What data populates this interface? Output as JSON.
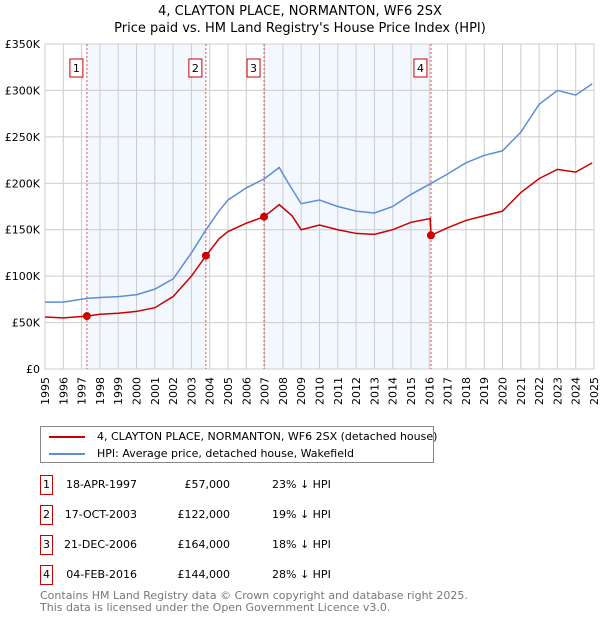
{
  "chart_data": {
    "type": "line",
    "title": "4, CLAYTON PLACE, NORMANTON, WF6 2SX",
    "subtitle": "Price paid vs. HM Land Registry's House Price Index (HPI)",
    "xlim": [
      1995,
      2025
    ],
    "ylim": [
      0,
      350000
    ],
    "x_ticks": [
      "1995",
      "1996",
      "1997",
      "1998",
      "1999",
      "2000",
      "2001",
      "2002",
      "2003",
      "2004",
      "2005",
      "2006",
      "2007",
      "2008",
      "2009",
      "2010",
      "2011",
      "2012",
      "2013",
      "2014",
      "2015",
      "2016",
      "2017",
      "2018",
      "2019",
      "2020",
      "2021",
      "2022",
      "2023",
      "2024",
      "2025"
    ],
    "y_ticks": [
      {
        "v": 0,
        "label": "£0"
      },
      {
        "v": 50000,
        "label": "£50K"
      },
      {
        "v": 100000,
        "label": "£100K"
      },
      {
        "v": 150000,
        "label": "£150K"
      },
      {
        "v": 200000,
        "label": "£200K"
      },
      {
        "v": 250000,
        "label": "£250K"
      },
      {
        "v": 300000,
        "label": "£300K"
      },
      {
        "v": 350000,
        "label": "£350K"
      }
    ],
    "grid": true,
    "series": [
      {
        "name": "4, CLAYTON PLACE, NORMANTON, WF6 2SX (detached house)",
        "color": "#cc0000",
        "x": [
          1995,
          1996,
          1997.3,
          1998,
          1999,
          2000,
          2001,
          2002,
          2003,
          2003.8,
          2004.5,
          2005,
          2006,
          2006.97,
          2007.8,
          2008.5,
          2009,
          2010,
          2011,
          2012,
          2013,
          2014,
          2015,
          2016.05,
          2016.1,
          2017,
          2018,
          2019,
          2020,
          2021,
          2022,
          2023,
          2024,
          2024.9
        ],
        "y": [
          56000,
          55000,
          57000,
          59000,
          60000,
          62000,
          66000,
          78000,
          100000,
          122000,
          140000,
          148000,
          157000,
          164000,
          177000,
          165000,
          150000,
          155000,
          150000,
          146000,
          145000,
          150000,
          158000,
          162000,
          144000,
          152000,
          160000,
          165000,
          170000,
          190000,
          205000,
          215000,
          212000,
          222000
        ]
      },
      {
        "name": "HPI: Average price, detached house, Wakefield",
        "color": "#5b8fd4",
        "x": [
          1995,
          1996,
          1997.3,
          1998,
          1999,
          2000,
          2001,
          2002,
          2003,
          2003.8,
          2004.5,
          2005,
          2006,
          2007,
          2007.8,
          2008.3,
          2009,
          2010,
          2011,
          2012,
          2013,
          2014,
          2015,
          2016.1,
          2017,
          2018,
          2019,
          2020,
          2021,
          2022,
          2023,
          2024,
          2024.9
        ],
        "y": [
          72000,
          72000,
          76000,
          77000,
          78000,
          80000,
          86000,
          97000,
          125000,
          150000,
          170000,
          182000,
          195000,
          205000,
          217000,
          200000,
          178000,
          182000,
          175000,
          170000,
          168000,
          175000,
          188000,
          200000,
          210000,
          222000,
          230000,
          235000,
          255000,
          285000,
          300000,
          295000,
          307000
        ]
      }
    ],
    "sales": [
      {
        "n": "1",
        "x": 1997.29,
        "date": "18-APR-1997",
        "price": 57000,
        "price_label": "£57,000",
        "hpi": "23% ↓ HPI"
      },
      {
        "n": "2",
        "x": 2003.79,
        "date": "17-OCT-2003",
        "price": 122000,
        "price_label": "£122,000",
        "hpi": "19% ↓ HPI"
      },
      {
        "n": "3",
        "x": 2006.97,
        "date": "21-DEC-2006",
        "price": 164000,
        "price_label": "£164,000",
        "hpi": "18% ↓ HPI"
      },
      {
        "n": "4",
        "x": 2016.09,
        "date": "04-FEB-2016",
        "price": 144000,
        "price_label": "£144,000",
        "hpi": "28% ↓ HPI"
      }
    ],
    "legend_position": "below"
  },
  "footer": {
    "line1": "Contains HM Land Registry data © Crown copyright and database right 2025.",
    "line2": "This data is licensed under the Open Government Licence v3.0."
  }
}
